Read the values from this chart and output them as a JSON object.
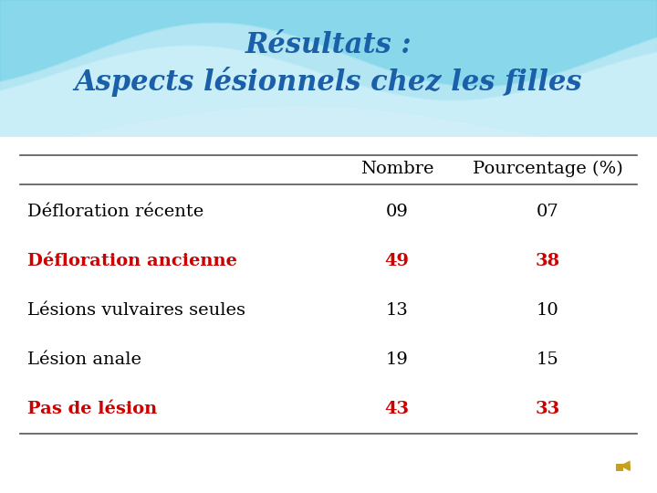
{
  "title_line1": "Résultats :",
  "title_line2": "Aspects lésionnels chez les filles",
  "title_color": "#1a5fa8",
  "col_headers": [
    "Nombre",
    "Pourcentage (%)"
  ],
  "rows": [
    {
      "label": "Défloration récente",
      "nombre": "09",
      "pct": "07",
      "color": "#000000",
      "bold": false
    },
    {
      "label": "Défloration ancienne",
      "nombre": "49",
      "pct": "38",
      "color": "#cc0000",
      "bold": true
    },
    {
      "label": "Lésions vulvaires seules",
      "nombre": "13",
      "pct": "10",
      "color": "#000000",
      "bold": false
    },
    {
      "label": "Lésion anale",
      "nombre": "19",
      "pct": "15",
      "color": "#000000",
      "bold": false
    },
    {
      "label": "Pas de lésion",
      "nombre": "43",
      "pct": "33",
      "color": "#cc0000",
      "bold": true
    }
  ],
  "header_color": "#000000",
  "line_color": "#555555",
  "bg_white": "#ffffff",
  "wave1_color": "#7dd4e8",
  "wave2_color": "#a8e4f0",
  "wave3_color": "#c5eef8",
  "wave_top_color": "#5bbdd4",
  "speaker_color": "#c8a020",
  "top_bg_color": "#d0eef8"
}
